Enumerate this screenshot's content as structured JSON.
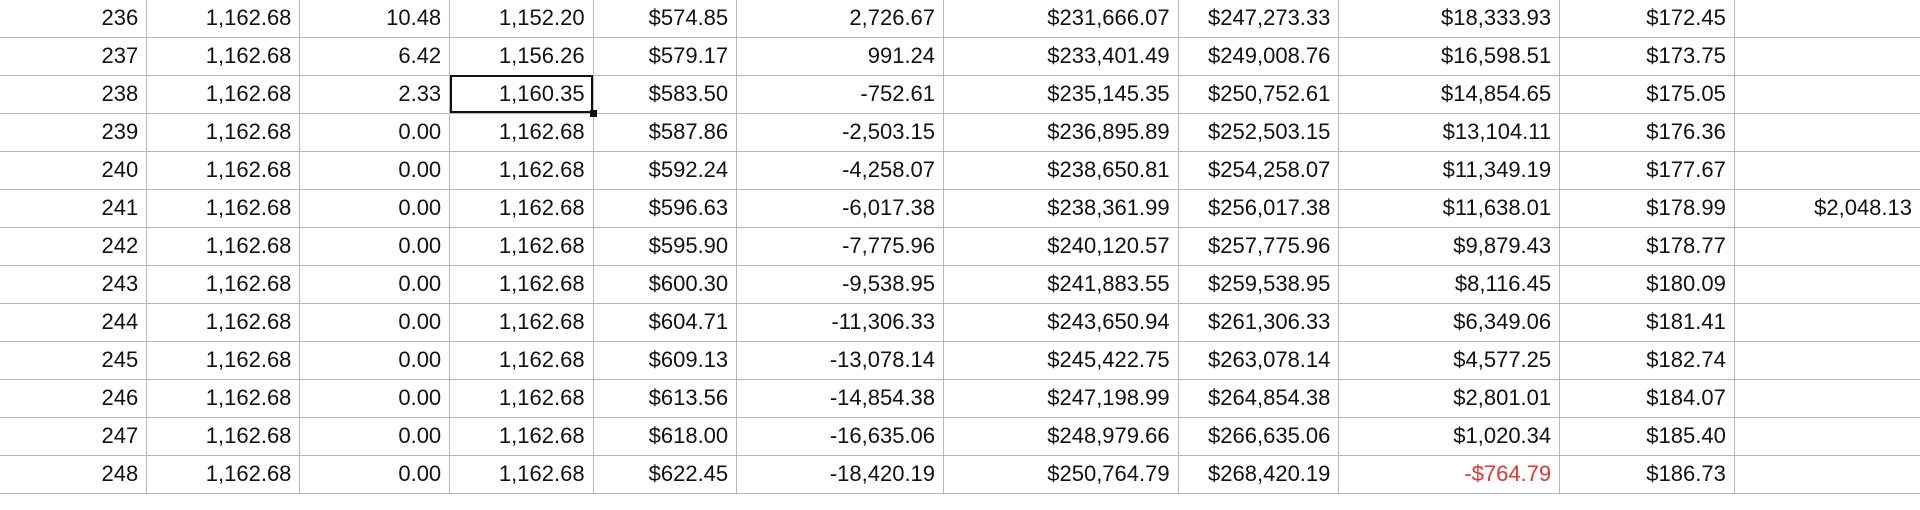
{
  "sheet": {
    "rows": [
      {
        "n": "236",
        "a": "1,162.68",
        "b": "10.48",
        "c": "1,152.20",
        "d": "$574.85",
        "e": "2,726.67",
        "f": "$231,666.07",
        "g": "$247,273.33",
        "h": "$18,333.93",
        "i": "$172.45",
        "j": ""
      },
      {
        "n": "237",
        "a": "1,162.68",
        "b": "6.42",
        "c": "1,156.26",
        "d": "$579.17",
        "e": "991.24",
        "f": "$233,401.49",
        "g": "$249,008.76",
        "h": "$16,598.51",
        "i": "$173.75",
        "j": ""
      },
      {
        "n": "238",
        "a": "1,162.68",
        "b": "2.33",
        "c": "1,160.35",
        "d": "$583.50",
        "e": "-752.61",
        "f": "$235,145.35",
        "g": "$250,752.61",
        "h": "$14,854.65",
        "i": "$175.05",
        "j": ""
      },
      {
        "n": "239",
        "a": "1,162.68",
        "b": "0.00",
        "c": "1,162.68",
        "d": "$587.86",
        "e": "-2,503.15",
        "f": "$236,895.89",
        "g": "$252,503.15",
        "h": "$13,104.11",
        "i": "$176.36",
        "j": ""
      },
      {
        "n": "240",
        "a": "1,162.68",
        "b": "0.00",
        "c": "1,162.68",
        "d": "$592.24",
        "e": "-4,258.07",
        "f": "$238,650.81",
        "g": "$254,258.07",
        "h": "$11,349.19",
        "i": "$177.67",
        "j": ""
      },
      {
        "n": "241",
        "a": "1,162.68",
        "b": "0.00",
        "c": "1,162.68",
        "d": "$596.63",
        "e": "-6,017.38",
        "f": "$238,361.99",
        "g": "$256,017.38",
        "h": "$11,638.01",
        "i": "$178.99",
        "j": "$2,048.13"
      },
      {
        "n": "242",
        "a": "1,162.68",
        "b": "0.00",
        "c": "1,162.68",
        "d": "$595.90",
        "e": "-7,775.96",
        "f": "$240,120.57",
        "g": "$257,775.96",
        "h": "$9,879.43",
        "i": "$178.77",
        "j": ""
      },
      {
        "n": "243",
        "a": "1,162.68",
        "b": "0.00",
        "c": "1,162.68",
        "d": "$600.30",
        "e": "-9,538.95",
        "f": "$241,883.55",
        "g": "$259,538.95",
        "h": "$8,116.45",
        "i": "$180.09",
        "j": ""
      },
      {
        "n": "244",
        "a": "1,162.68",
        "b": "0.00",
        "c": "1,162.68",
        "d": "$604.71",
        "e": "-11,306.33",
        "f": "$243,650.94",
        "g": "$261,306.33",
        "h": "$6,349.06",
        "i": "$181.41",
        "j": ""
      },
      {
        "n": "245",
        "a": "1,162.68",
        "b": "0.00",
        "c": "1,162.68",
        "d": "$609.13",
        "e": "-13,078.14",
        "f": "$245,422.75",
        "g": "$263,078.14",
        "h": "$4,577.25",
        "i": "$182.74",
        "j": ""
      },
      {
        "n": "246",
        "a": "1,162.68",
        "b": "0.00",
        "c": "1,162.68",
        "d": "$613.56",
        "e": "-14,854.38",
        "f": "$247,198.99",
        "g": "$264,854.38",
        "h": "$2,801.01",
        "i": "$184.07",
        "j": ""
      },
      {
        "n": "247",
        "a": "1,162.68",
        "b": "0.00",
        "c": "1,162.68",
        "d": "$618.00",
        "e": "-16,635.06",
        "f": "$248,979.66",
        "g": "$266,635.06",
        "h": "$1,020.34",
        "i": "$185.40",
        "j": ""
      },
      {
        "n": "248",
        "a": "1,162.68",
        "b": "0.00",
        "c": "1,162.68",
        "d": "$622.45",
        "e": "-18,420.19",
        "f": "$250,764.79",
        "g": "$268,420.19",
        "h": "-$764.79",
        "i": "$186.73",
        "j": ""
      }
    ],
    "negative_color": "#e5362e",
    "selected_cell": {
      "row": "238",
      "column": "c"
    }
  }
}
